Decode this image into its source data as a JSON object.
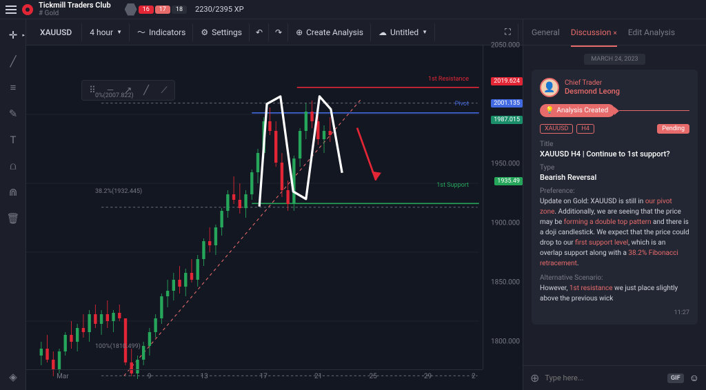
{
  "header": {
    "club_name": "Tickmill Traders Club",
    "club_sub": "# Gold",
    "badges": [
      "16",
      "17",
      "18"
    ],
    "xp": "2230/2395 XP"
  },
  "toolbar": {
    "symbol": "XAUUSD",
    "timeframe": "4 hour",
    "indicators": "Indicators",
    "settings": "Settings",
    "create": "Create Analysis",
    "untitled": "Untitled"
  },
  "chart": {
    "ylim": [
      1800,
      2050
    ],
    "ytick_step": 50,
    "yticks": [
      1800,
      1850,
      1900,
      1950,
      2000,
      2050
    ],
    "xticks": [
      {
        "pos": 0.08,
        "label": "Mar"
      },
      {
        "pos": 0.27,
        "label": "9"
      },
      {
        "pos": 0.39,
        "label": "13"
      },
      {
        "pos": 0.52,
        "label": "17"
      },
      {
        "pos": 0.64,
        "label": "21"
      },
      {
        "pos": 0.76,
        "label": "25"
      },
      {
        "pos": 0.88,
        "label": "29"
      },
      {
        "pos": 0.98,
        "label": "2"
      }
    ],
    "fib_levels": [
      {
        "label": "0%(2007.822)",
        "y": 2007.822,
        "color": "#787b86"
      },
      {
        "label": "38.2%(1932.445)",
        "y": 1932.445,
        "color": "#787b86"
      },
      {
        "label": "100%(1810.499)",
        "y": 1810.499,
        "color": "#787b86"
      }
    ],
    "h_lines": [
      {
        "label": "1st Resistance",
        "y": 2019.624,
        "color": "#e32636",
        "x1": 0.6,
        "x2": 1.0
      },
      {
        "label": "Pivot",
        "y": 2001.135,
        "color": "#4169e1",
        "x1": 0.5,
        "x2": 1.0
      },
      {
        "label": "1st Support",
        "y": 1935.49,
        "color": "#26a65b",
        "x1": 0.5,
        "x2": 1.0
      }
    ],
    "price_tags": [
      {
        "y": 2019.624,
        "text": "2019.624",
        "bg": "#e32636"
      },
      {
        "y": 2001.135,
        "text": "2001.135",
        "bg": "#4169e1"
      },
      {
        "y": 1987.015,
        "text": "1987.015",
        "bg": "#1a8f6a"
      },
      {
        "y": 1935.49,
        "text": "1935.49",
        "bg": "#26a65b"
      }
    ],
    "candle_up": "#26a65b",
    "candle_down": "#e32636",
    "bg": "#131722"
  },
  "panel": {
    "tabs": [
      "General",
      "Discussion",
      "Edit Analysis"
    ],
    "active_tab": 1,
    "date": "MARCH 24, 2023",
    "trader_role": "Chief Trader",
    "trader_name": "Desmond Leong",
    "badge": "Analysis Created",
    "tags": [
      "XAUUSD",
      "H4"
    ],
    "pending": "Pending",
    "title_label": "Title",
    "title": "XAUUSD H4 | Continue to 1st support?",
    "type_label": "Type",
    "type": "Bearish Reversal",
    "pref_label": "Preference:",
    "pref_1": "Update on Gold: XAUUSD is still in ",
    "pref_hl1": "our pivot zone",
    "pref_2": ". Additionally, we are seeing that the price may be ",
    "pref_hl2": "forming a double top pattern",
    "pref_3": " and there is a doji candlestick. We expect that the price could drop to our ",
    "pref_hl3": "first support level",
    "pref_4": ", which is an overlap support along with a ",
    "pref_hl4": "38.2% Fibonacci retracement",
    "pref_5": ".",
    "alt_label": "Alternative Scenario:",
    "alt_1": "However, ",
    "alt_hl1": "1st resistance",
    "alt_2": " we just place slightly above the previous wick",
    "time": "11:27",
    "input_placeholder": "Type here...",
    "gif": "GIF"
  }
}
